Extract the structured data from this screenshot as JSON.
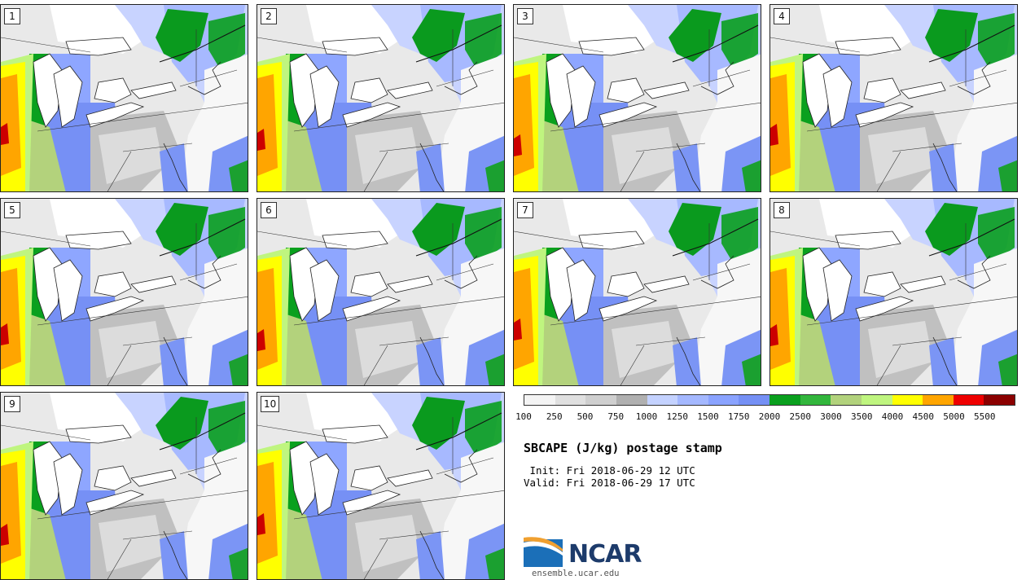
{
  "panels": [
    "1",
    "2",
    "3",
    "4",
    "5",
    "6",
    "7",
    "8",
    "9",
    "10"
  ],
  "colorbar": {
    "ticks": [
      "100",
      "250",
      "500",
      "750",
      "1000",
      "1250",
      "1500",
      "1750",
      "2000",
      "2500",
      "3000",
      "3500",
      "4000",
      "4500",
      "5000",
      "5500"
    ],
    "colors": [
      "#f4f4f4",
      "#e0e0e0",
      "#cfcfcf",
      "#b0b0b0",
      "#c4d2ff",
      "#a4b8ff",
      "#8aa3ff",
      "#7590f5",
      "#0aa01e",
      "#32b63c",
      "#b2d27c",
      "#bff57f",
      "#ffff00",
      "#ffa500",
      "#ee0000",
      "#8b0000"
    ]
  },
  "title": "SBCAPE (J/kg) postage stamp",
  "init": " Init: Fri 2018-06-29 12 UTC",
  "valid": "Valid: Fri 2018-06-29 17 UTC",
  "logo_text": "NCAR",
  "site": "ensemble.ucar.edu"
}
